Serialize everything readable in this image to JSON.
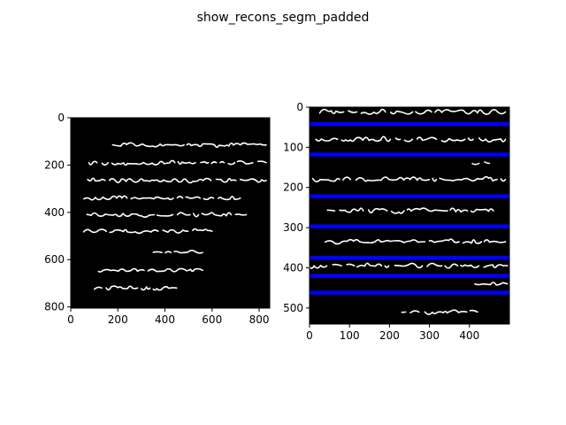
{
  "figure": {
    "title": "show_recons_segm_padded"
  },
  "chart_data": [
    {
      "type": "image",
      "content": "binary text image: white handwritten script on black background",
      "colors": {
        "background": "#000000",
        "foreground": "#ffffff"
      },
      "xlim": [
        0,
        845
      ],
      "ylim": [
        805,
        0
      ],
      "xticks": [
        0,
        200,
        400,
        600,
        800
      ],
      "yticks": [
        0,
        200,
        400,
        600,
        800
      ],
      "text_line_centers": [
        115,
        190,
        265,
        340,
        410,
        480,
        570,
        645,
        720
      ],
      "grid": false
    },
    {
      "type": "image",
      "content": "binary text image with horizontal blue line-segmentation separators",
      "colors": {
        "background": "#000000",
        "foreground": "#ffffff",
        "separator": "#0000ff"
      },
      "xlim": [
        0,
        500
      ],
      "ylim": [
        540,
        0
      ],
      "xticks": [
        0,
        100,
        200,
        300,
        400
      ],
      "yticks": [
        0,
        100,
        200,
        300,
        400,
        500
      ],
      "separators_y": [
        42,
        118,
        222,
        297,
        375,
        420,
        462
      ],
      "text_line_centers": [
        12,
        80,
        140,
        180,
        258,
        335,
        395,
        440,
        510
      ],
      "grid": false
    }
  ]
}
